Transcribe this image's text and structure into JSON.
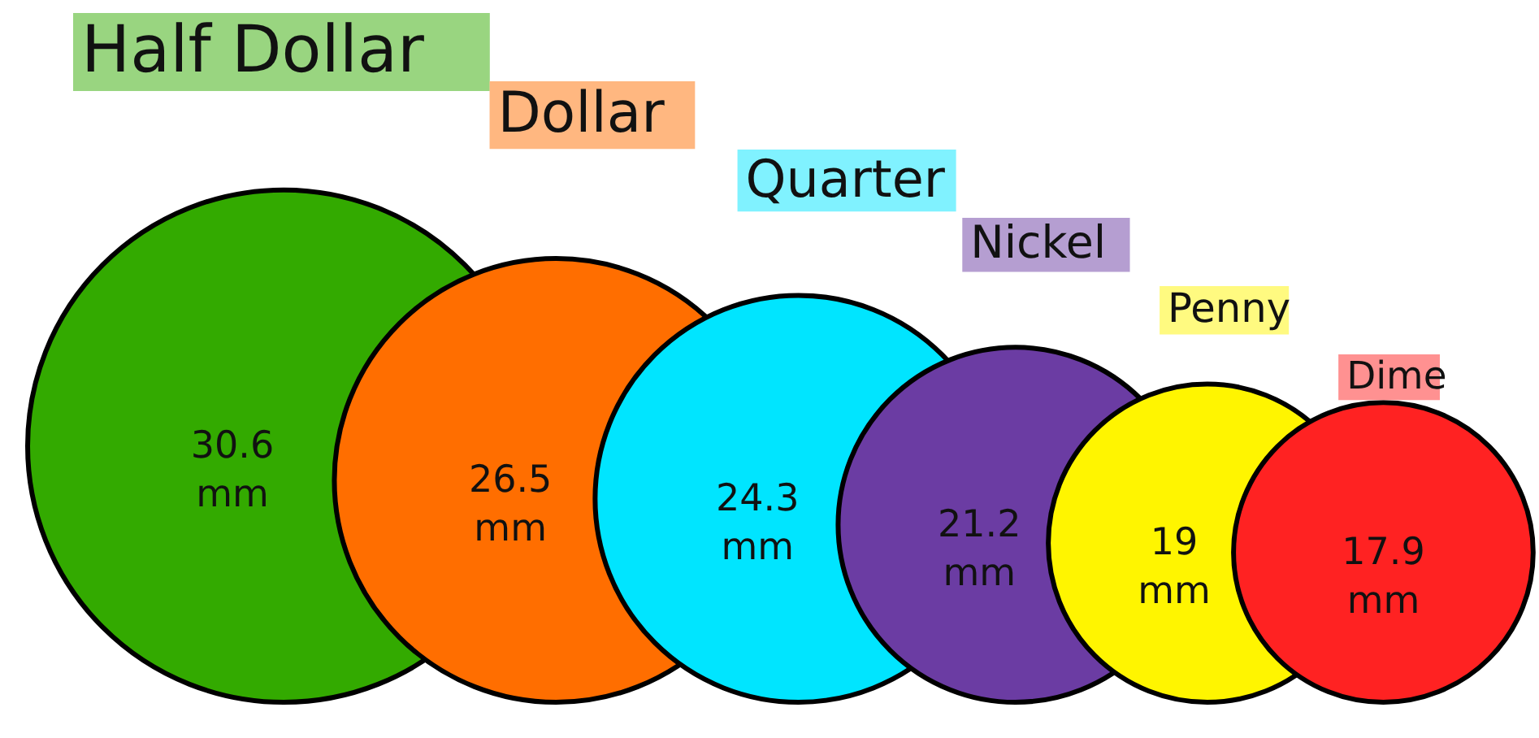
{
  "chart_data": {
    "type": "other",
    "categories": [
      "Half Dollar",
      "Dollar",
      "Quarter",
      "Nickel",
      "Penny",
      "Dime"
    ],
    "values": [
      30.6,
      26.5,
      24.3,
      21.2,
      19,
      17.9
    ],
    "colors": [
      "#33aa00",
      "#ff6e00",
      "#00e5ff",
      "#6b3ca3",
      "#fff500",
      "#ff2222"
    ],
    "value_labels": [
      "30.6 mm",
      "26.5 mm",
      "24.3 mm",
      "21.2 mm",
      "19 mm",
      "17.9 mm"
    ]
  }
}
